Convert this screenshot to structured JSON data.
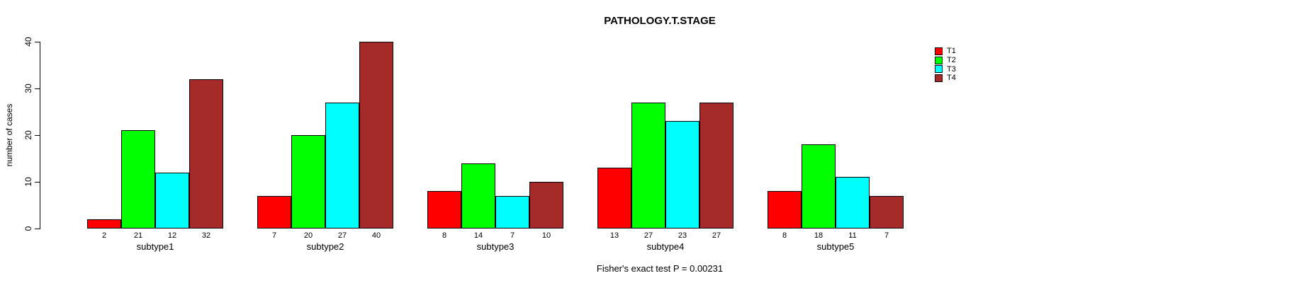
{
  "chart_data": {
    "type": "bar",
    "title": "PATHOLOGY.T.STAGE",
    "xlabel": "",
    "ylabel": "number of cases",
    "categories": [
      "subtype1",
      "subtype2",
      "subtype3",
      "subtype4",
      "subtype5"
    ],
    "series": [
      {
        "name": "T1",
        "color": "#ff0000",
        "values": [
          2,
          7,
          8,
          13,
          8
        ]
      },
      {
        "name": "T2",
        "color": "#00ff00",
        "values": [
          21,
          20,
          14,
          27,
          18
        ]
      },
      {
        "name": "T3",
        "color": "#00ffff",
        "values": [
          12,
          27,
          7,
          23,
          11
        ]
      },
      {
        "name": "T4",
        "color": "#a52a2a",
        "values": [
          32,
          40,
          10,
          27,
          7
        ]
      }
    ],
    "value_labels": [
      [
        "2",
        "21",
        "12",
        "32"
      ],
      [
        "7",
        "20",
        "27",
        "40"
      ],
      [
        "8",
        "14",
        "7",
        "10"
      ],
      [
        "13",
        "27",
        "23",
        "27"
      ],
      [
        "8",
        "18",
        "11",
        "7"
      ]
    ],
    "ylim": [
      0,
      40
    ],
    "yticks": [
      0,
      10,
      20,
      30,
      40
    ],
    "grid": false,
    "legend_position": "topright",
    "bar_border_color": "#000000",
    "background_color": "#ffffff",
    "annotation": "Fisher's exact test P = 0.00231"
  }
}
